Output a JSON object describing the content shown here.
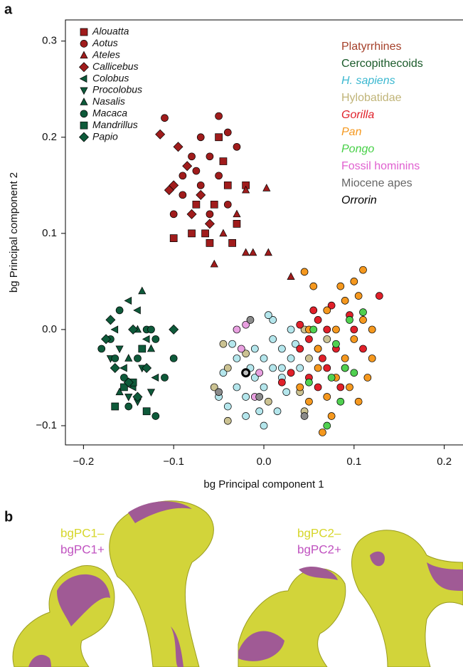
{
  "panel_a": {
    "label": "a"
  },
  "panel_b": {
    "label": "b",
    "legend_left": [
      {
        "name": "bgPC1–",
        "color": "#d6d62a"
      },
      {
        "name": "bgPC1+",
        "color": "#c052c0"
      }
    ],
    "legend_right": [
      {
        "name": "bgPC2–",
        "color": "#d6d62a"
      },
      {
        "name": "bgPC2+",
        "color": "#c052c0"
      }
    ]
  },
  "chart_data": {
    "type": "scatter",
    "xlabel": "bg Principal component 1",
    "ylabel": "bg Principal component 2",
    "xlim": [
      -0.22,
      0.22
    ],
    "ylim": [
      -0.12,
      0.322
    ],
    "xticks": [
      {
        "value": -0.2,
        "label": "−0.2"
      },
      {
        "value": -0.1,
        "label": "−0.1"
      },
      {
        "value": 0,
        "label": "0.0"
      },
      0.1,
      0.2
    ],
    "yticks": [
      {
        "value": -0.1,
        "label": "−0.1"
      },
      {
        "value": 0,
        "label": "0.0"
      },
      0.1,
      0.2,
      0.3
    ],
    "groups": [
      {
        "name": "Platyrrhines",
        "color": "#a5402a",
        "fill": "#a01c1c",
        "italic": false
      },
      {
        "name": "Cercopithecoids",
        "color": "#1a5a2a",
        "fill": "#0e5a3a",
        "italic": false
      },
      {
        "name": "H. sapiens",
        "color": "#3cb8d0",
        "fill": "#b4e6ec",
        "italic": true
      },
      {
        "name": "Hylobatidae",
        "color": "#c0b478",
        "fill": "#cbc292",
        "italic": false
      },
      {
        "name": "Gorilla",
        "color": "#e0202a",
        "fill": "#e0202a",
        "italic": true
      },
      {
        "name": "Pan",
        "color": "#f5981e",
        "fill": "#f5981e",
        "italic": true
      },
      {
        "name": "Pongo",
        "color": "#46d046",
        "fill": "#50d050",
        "italic": true
      },
      {
        "name": "Fossil hominins",
        "color": "#e060d0",
        "fill": "#e8a0e0",
        "italic": false
      },
      {
        "name": "Miocene apes",
        "color": "#666666",
        "fill": "#8a8a8a",
        "italic": false
      },
      {
        "name": "Orrorin",
        "color": "#000000",
        "fill": "#c0c0c0",
        "italic": true,
        "stroke_width": 3
      }
    ],
    "series": [
      {
        "name": "Alouatta",
        "group": 0,
        "marker": "square",
        "x": [
          -0.05,
          -0.1,
          -0.08,
          -0.06,
          -0.035,
          -0.04,
          -0.02,
          -0.055,
          -0.03,
          -0.075,
          -0.045,
          -0.065
        ],
        "y": [
          0.2,
          0.095,
          0.1,
          0.09,
          0.09,
          0.15,
          0.15,
          0.13,
          0.11,
          0.13,
          0.175,
          0.1
        ]
      },
      {
        "name": "Aotus",
        "group": 0,
        "marker": "circle",
        "x": [
          -0.11,
          -0.05,
          -0.07,
          -0.04,
          -0.03,
          -0.06,
          -0.08,
          -0.09,
          -0.07,
          -0.1,
          -0.06,
          -0.04,
          -0.05,
          -0.09,
          -0.075
        ],
        "y": [
          0.22,
          0.222,
          0.2,
          0.205,
          0.19,
          0.18,
          0.18,
          0.16,
          0.15,
          0.12,
          0.12,
          0.13,
          0.16,
          0.14,
          0.165
        ]
      },
      {
        "name": "Ateles",
        "group": 0,
        "marker": "triangle",
        "x": [
          -0.02,
          0.003,
          -0.012,
          -0.02,
          0.005,
          -0.055,
          0.03,
          -0.03,
          -0.045
        ],
        "y": [
          0.145,
          0.147,
          0.08,
          0.08,
          0.08,
          0.068,
          0.055,
          0.12,
          0.1
        ]
      },
      {
        "name": "Callicebus",
        "group": 0,
        "marker": "diamond",
        "x": [
          -0.115,
          -0.095,
          -0.085,
          -0.1,
          -0.105,
          -0.07,
          -0.06,
          -0.08
        ],
        "y": [
          0.203,
          0.19,
          0.17,
          0.15,
          0.145,
          0.14,
          0.11,
          0.12
        ]
      },
      {
        "name": "Colobus",
        "group": 1,
        "marker": "triangle-left",
        "x": [
          -0.15,
          -0.14,
          -0.165,
          -0.13,
          -0.155,
          -0.12,
          -0.145
        ],
        "y": [
          0.03,
          0.02,
          0.0,
          -0.01,
          -0.04,
          -0.05,
          -0.06
        ]
      },
      {
        "name": "Procolobus",
        "group": 1,
        "marker": "triangle-down",
        "x": [
          -0.16,
          -0.135,
          -0.15,
          -0.14,
          -0.125,
          -0.17
        ],
        "y": [
          -0.02,
          -0.04,
          -0.07,
          -0.075,
          -0.065,
          -0.03
        ]
      },
      {
        "name": "Nasalis",
        "group": 1,
        "marker": "triangle",
        "x": [
          -0.135,
          -0.14,
          -0.16,
          -0.15,
          -0.125
        ],
        "y": [
          0.04,
          0.0,
          -0.065,
          -0.03,
          -0.02
        ]
      },
      {
        "name": "Macaca",
        "group": 1,
        "marker": "circle",
        "x": [
          -0.16,
          -0.17,
          -0.165,
          -0.13,
          -0.12,
          -0.1,
          -0.12,
          -0.15,
          -0.155,
          -0.11,
          -0.14,
          -0.18,
          -0.125
        ],
        "y": [
          0.02,
          -0.01,
          -0.03,
          0.0,
          -0.01,
          -0.03,
          -0.09,
          -0.08,
          -0.05,
          -0.05,
          -0.03,
          -0.02,
          0.0
        ]
      },
      {
        "name": "Mandrillus",
        "group": 1,
        "marker": "square",
        "x": [
          -0.165,
          -0.13,
          -0.145,
          -0.155,
          -0.135
        ],
        "y": [
          -0.08,
          -0.085,
          -0.055,
          -0.06,
          -0.02
        ]
      },
      {
        "name": "Papio",
        "group": 1,
        "marker": "diamond",
        "x": [
          -0.175,
          -0.17,
          -0.145,
          -0.1,
          -0.13,
          -0.15,
          -0.165,
          -0.14
        ],
        "y": [
          -0.01,
          0.01,
          0.0,
          0.0,
          -0.04,
          -0.055,
          -0.04,
          -0.07
        ]
      },
      {
        "group": 2,
        "marker": "circle",
        "x": [
          -0.05,
          -0.04,
          -0.03,
          -0.02,
          -0.01,
          0.0,
          0.01,
          0.02,
          0.0,
          -0.01,
          -0.03,
          0.03,
          0.02,
          0.01,
          -0.02,
          0.0,
          0.015,
          -0.035,
          0.01,
          0.005,
          0.025,
          0.04,
          -0.045,
          0.03,
          -0.015,
          0.035,
          -0.005,
          0.02
        ],
        "y": [
          -0.07,
          -0.08,
          -0.06,
          -0.07,
          -0.05,
          -0.06,
          -0.04,
          -0.05,
          -0.03,
          -0.02,
          -0.03,
          -0.03,
          -0.02,
          -0.01,
          -0.09,
          -0.1,
          -0.085,
          -0.015,
          0.01,
          0.015,
          -0.065,
          -0.04,
          -0.045,
          0.0,
          -0.04,
          -0.015,
          -0.085,
          -0.04
        ]
      },
      {
        "group": 3,
        "marker": "circle",
        "x": [
          -0.04,
          -0.055,
          -0.04,
          -0.02,
          0.045,
          0.05,
          0.06,
          0.045,
          0.04,
          0.07,
          0.005,
          -0.045
        ],
        "y": [
          -0.04,
          -0.06,
          -0.095,
          -0.025,
          0.0,
          -0.03,
          -0.02,
          -0.085,
          -0.065,
          -0.01,
          -0.075,
          -0.015
        ]
      },
      {
        "group": 4,
        "marker": "circle",
        "x": [
          0.04,
          0.05,
          0.06,
          0.07,
          0.08,
          0.09,
          0.05,
          0.06,
          0.07,
          0.03,
          0.04,
          0.075,
          0.1,
          0.128,
          0.085,
          0.065,
          0.055,
          0.02,
          0.11,
          0.095
        ],
        "y": [
          -0.02,
          -0.01,
          0.01,
          0.0,
          -0.02,
          -0.04,
          -0.05,
          -0.06,
          -0.04,
          -0.045,
          0.005,
          0.025,
          0.0,
          0.035,
          -0.06,
          -0.03,
          0.02,
          -0.055,
          -0.02,
          0.015
        ]
      },
      {
        "group": 5,
        "marker": "circle",
        "x": [
          0.05,
          0.06,
          0.07,
          0.08,
          0.09,
          0.1,
          0.11,
          0.12,
          0.085,
          0.09,
          0.045,
          0.055,
          0.1,
          0.11,
          0.105,
          0.075,
          0.065,
          0.05,
          0.095,
          0.115,
          0.12,
          0.07,
          0.04,
          0.105,
          0.08,
          0.06
        ],
        "y": [
          0.0,
          -0.04,
          -0.07,
          -0.05,
          -0.03,
          -0.01,
          0.01,
          -0.03,
          0.045,
          0.03,
          0.06,
          0.045,
          0.05,
          0.062,
          0.035,
          -0.09,
          -0.107,
          -0.075,
          -0.06,
          -0.05,
          0.0,
          0.02,
          -0.06,
          -0.075,
          0.0,
          -0.02
        ]
      },
      {
        "group": 6,
        "marker": "circle",
        "x": [
          0.055,
          0.09,
          0.075,
          0.11,
          0.05,
          0.085,
          0.07,
          0.095,
          0.08,
          0.1
        ],
        "y": [
          0.0,
          -0.04,
          -0.05,
          0.018,
          -0.055,
          -0.075,
          -0.1,
          0.01,
          -0.015,
          -0.045
        ]
      },
      {
        "group": 7,
        "marker": "circle",
        "x": [
          -0.03,
          -0.025,
          -0.01,
          -0.02,
          -0.005
        ],
        "y": [
          0.0,
          -0.02,
          -0.07,
          0.005,
          -0.045
        ]
      },
      {
        "group": 8,
        "marker": "circle",
        "x": [
          -0.015,
          -0.05,
          -0.005,
          0.045
        ],
        "y": [
          0.01,
          -0.065,
          -0.07,
          -0.09
        ]
      },
      {
        "group": 9,
        "marker": "circle",
        "x": [
          -0.02
        ],
        "y": [
          -0.045
        ]
      }
    ]
  }
}
